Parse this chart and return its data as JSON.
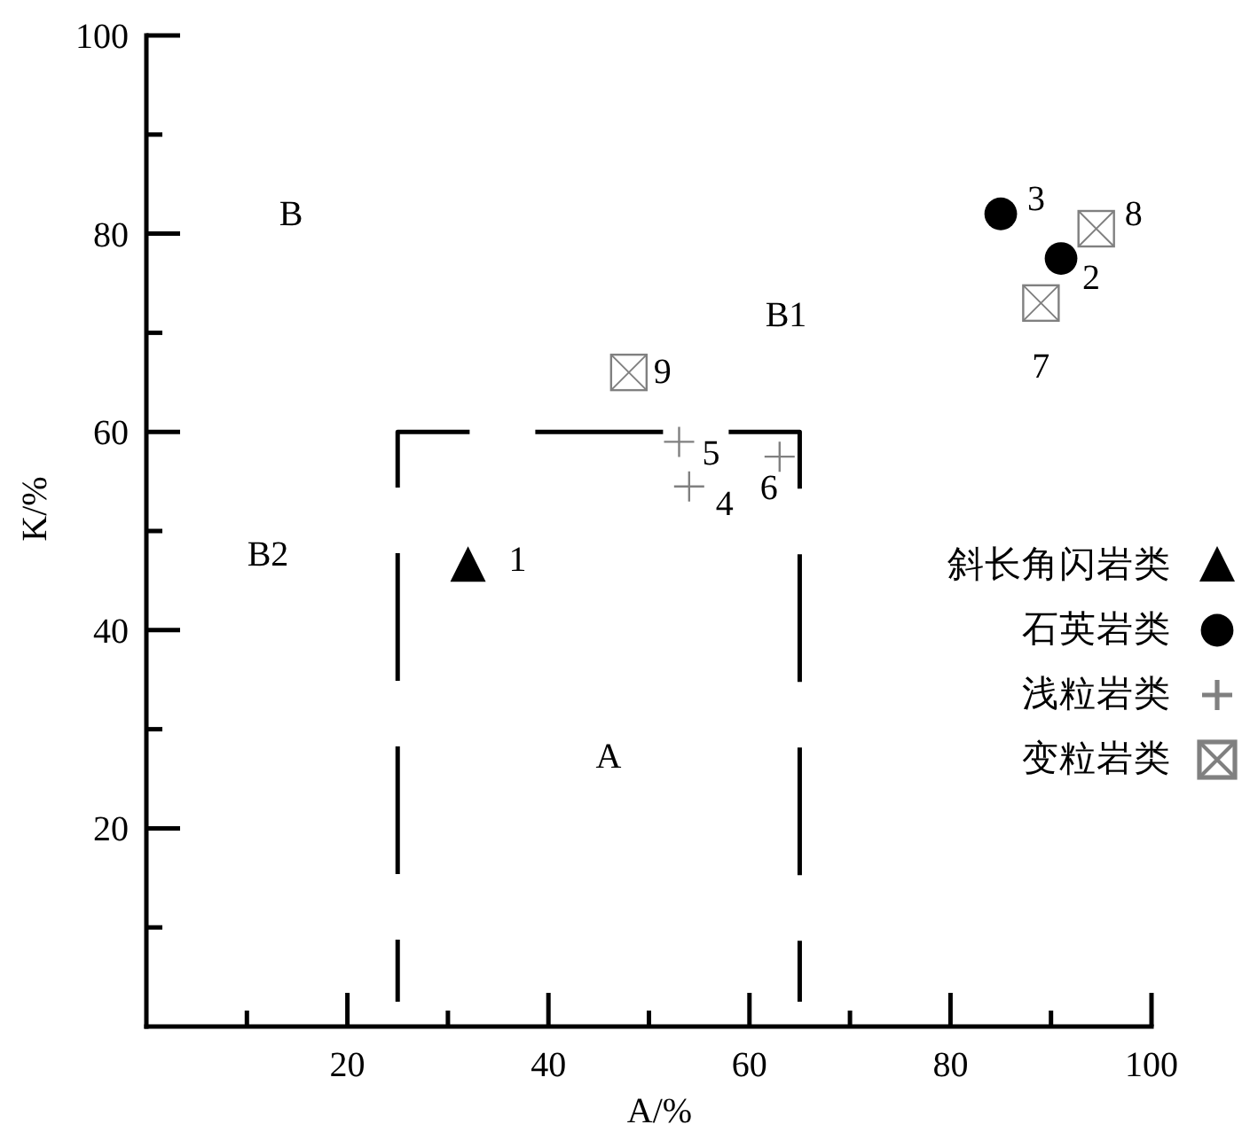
{
  "chart_data": {
    "type": "scatter",
    "xlabel": "A/%",
    "ylabel": "K/%",
    "xlim": [
      0,
      100
    ],
    "ylim": [
      0,
      100
    ],
    "xticks": [
      {
        "value": 10,
        "label": null
      },
      20,
      {
        "value": 30,
        "label": null
      },
      40,
      {
        "value": 50,
        "label": null
      },
      60,
      {
        "value": 70,
        "label": null
      },
      80,
      {
        "value": 90,
        "label": null
      },
      100
    ],
    "yticks": [
      {
        "value": 10,
        "label": null
      },
      20,
      {
        "value": 30,
        "label": null
      },
      40,
      {
        "value": 50,
        "label": null
      },
      60,
      {
        "value": 70,
        "label": null
      },
      80,
      {
        "value": 90,
        "label": null
      },
      100
    ],
    "legend": "right",
    "series": [
      {
        "name": "斜长角闪岩类",
        "color": "#000000",
        "marker": "triangle",
        "x": [
          32
        ],
        "values": [
          46.5
        ]
      },
      {
        "name": "石英岩类",
        "color": "#000000",
        "marker": "circle",
        "x": [
          91,
          85
        ],
        "values": [
          77.5,
          82
        ]
      },
      {
        "name": "浅粒岩类",
        "color": "#808080",
        "marker": "cross",
        "x": [
          54,
          53,
          63
        ],
        "values": [
          54.5,
          59,
          57.5
        ]
      },
      {
        "name": "变粒岩类",
        "color": "#808080",
        "marker": "square",
        "x": [
          89,
          94.5,
          48
        ],
        "values": [
          73,
          80.5,
          66
        ]
      },
      {
        "type": "line",
        "color": "#000000",
        "line_style": "dashed",
        "marker": "none",
        "x": [
          25,
          25,
          65,
          65
        ],
        "values": [
          2.5,
          60,
          60,
          2.5
        ]
      }
    ],
    "annotations": [
      {
        "text": "1",
        "x": 32,
        "y": 46.5
      },
      {
        "text": "2",
        "x": 91,
        "y": 77.5
      },
      {
        "text": "3",
        "x": 85,
        "y": 82
      },
      {
        "text": "4",
        "x": 54,
        "y": 54.5
      },
      {
        "text": "5",
        "x": 53,
        "y": 59
      },
      {
        "text": "6",
        "x": 63,
        "y": 57.5
      },
      {
        "text": "7",
        "x": 89,
        "y": 73
      },
      {
        "text": "8",
        "x": 94.5,
        "y": 80.5
      },
      {
        "text": "9",
        "x": 48,
        "y": 66
      },
      "B",
      "B1",
      "B2",
      "A"
    ]
  }
}
